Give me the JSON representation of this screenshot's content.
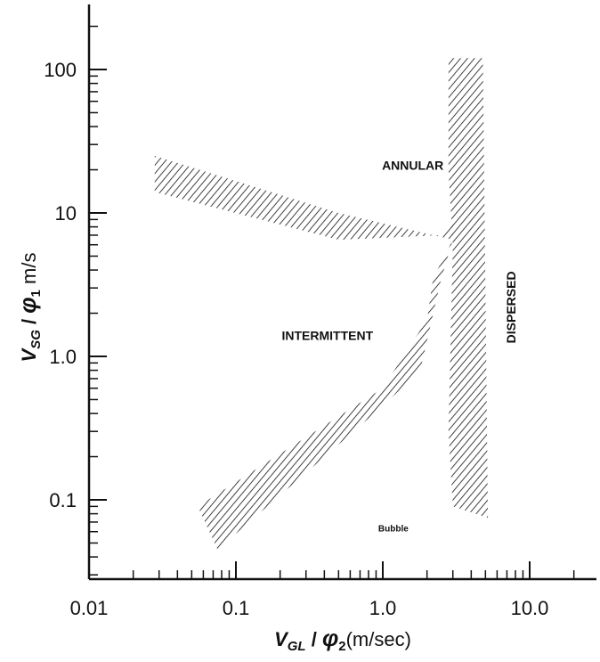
{
  "chart_data": {
    "type": "area",
    "title": "",
    "xlabel": {
      "main": "V",
      "sub": "GL",
      "mid": " / ",
      "phi": "φ",
      "phisub": "2",
      "tail": "(m/sec)"
    },
    "ylabel": {
      "main": "V",
      "sub": "SG",
      "mid": " / ",
      "phi": "φ",
      "phisub": "1",
      "tail": " m/s"
    },
    "x_scale": "log",
    "y_scale": "log",
    "xlim": [
      0.01,
      25
    ],
    "ylim": [
      0.03,
      250
    ],
    "x_ticks": [
      {
        "value": 0.01,
        "label": "0.01"
      },
      {
        "value": 0.1,
        "label": "0.1"
      },
      {
        "value": 1,
        "label": "1.0"
      },
      {
        "value": 10,
        "label": "10.0"
      }
    ],
    "y_ticks": [
      {
        "value": 0.1,
        "label": "0.1"
      },
      {
        "value": 1,
        "label": "1.0"
      },
      {
        "value": 10,
        "label": "10"
      },
      {
        "value": 100,
        "label": "100"
      }
    ],
    "grid": false,
    "regions": [
      {
        "name": "ANNULAR",
        "x": 1.6,
        "y": 20,
        "size": 14
      },
      {
        "name": "INTERMITTENT",
        "x": 0.42,
        "y": 1.3,
        "size": 14
      },
      {
        "name": "DISPERSED",
        "x": 8,
        "y": 2.2,
        "size": 14,
        "rotate": -90
      },
      {
        "name": "Bubble",
        "x": 1.18,
        "y": 0.06,
        "size": 10
      }
    ],
    "transition_bands": [
      {
        "name": "annular-intermittent",
        "points": [
          [
            0.028,
            25
          ],
          [
            0.5,
            10
          ],
          [
            3.0,
            6.5
          ],
          [
            3.0,
            8.5
          ],
          [
            2.6,
            7
          ],
          [
            0.5,
            6.5
          ],
          [
            0.028,
            14
          ]
        ]
      },
      {
        "name": "intermittent-lower",
        "points": [
          [
            0.055,
            0.09
          ],
          [
            1.0,
            0.6
          ],
          [
            2.0,
            1.8
          ],
          [
            2.2,
            3.5
          ],
          [
            3.0,
            6.5
          ],
          [
            2.5,
            3.5
          ],
          [
            1.8,
            0.8
          ],
          [
            1.0,
            0.45
          ],
          [
            0.075,
            0.045
          ]
        ]
      },
      {
        "name": "vertical-dispersed",
        "points": [
          [
            2.8,
            120
          ],
          [
            4.8,
            120
          ],
          [
            5.2,
            0.075
          ],
          [
            3.0,
            0.09
          ],
          [
            2.8,
            0.3
          ],
          [
            3.0,
            6
          ],
          [
            2.8,
            20
          ]
        ]
      }
    ]
  }
}
